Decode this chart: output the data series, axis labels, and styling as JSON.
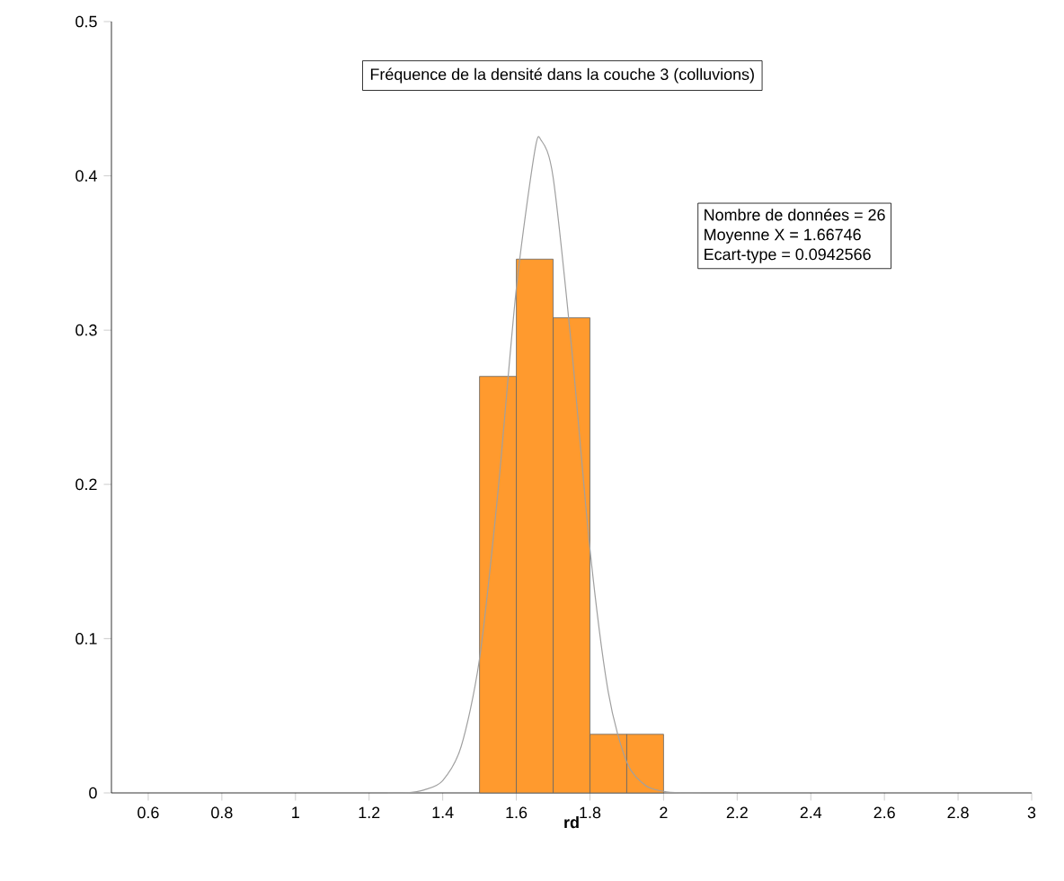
{
  "chart_data": {
    "type": "histogram",
    "title": "Fréquence de la densité dans la couche 3 (colluvions)",
    "xlabel": "rd",
    "annotations": [
      "Nombre de données = 26",
      "Moyenne X = 1.66746",
      "Ecart-type = 0.0942566"
    ],
    "series": [
      {
        "color": "#ff9a2e",
        "bins": [
          1.5,
          1.6,
          1.7,
          1.8,
          1.9,
          2.0
        ],
        "values": [
          0.27,
          0.346,
          0.308,
          0.038,
          0.038
        ]
      },
      {
        "type": "line",
        "color": "#a0a0a0",
        "x": [
          1.25,
          1.3,
          1.35,
          1.4,
          1.45,
          1.5,
          1.55,
          1.6,
          1.65,
          1.6675,
          1.7,
          1.75,
          1.8,
          1.85,
          1.9,
          1.95,
          2.0,
          2.05,
          2.1
        ],
        "values": [
          0,
          0,
          0.002,
          0.008,
          0.03,
          0.087,
          0.195,
          0.327,
          0.416,
          0.423,
          0.399,
          0.289,
          0.158,
          0.065,
          0.02,
          0.005,
          0.001,
          0,
          0
        ]
      }
    ],
    "xlim": [
      0.5,
      3
    ],
    "ylim": [
      0,
      0.5
    ],
    "xticks": [
      0.6,
      0.8,
      1,
      1.2,
      1.4,
      1.6,
      1.8,
      2,
      2.2,
      2.4,
      2.6,
      2.8,
      3
    ],
    "yticks": [
      0,
      0.1,
      0.2,
      0.3,
      0.4,
      0.5
    ]
  }
}
